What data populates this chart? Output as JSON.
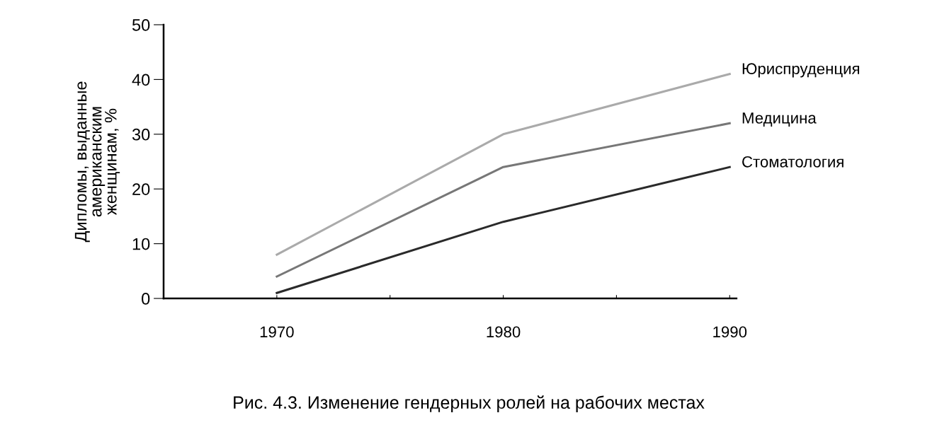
{
  "chart_data": {
    "type": "line",
    "ylabel": "Дипломы, выданные\nамериканским\nженщинам, %",
    "x": [
      1970,
      1980,
      1990
    ],
    "series": [
      {
        "name": "Юриспруденция",
        "color": "#aaaaaa",
        "values": [
          8,
          30,
          41
        ]
      },
      {
        "name": "Медицина",
        "color": "#777777",
        "values": [
          4,
          24,
          32
        ]
      },
      {
        "name": "Стоматология",
        "color": "#2a2a2a",
        "values": [
          1,
          14,
          24
        ]
      }
    ],
    "xlim": [
      1965,
      1990.3
    ],
    "xticks": [
      1970,
      {
        "value": 1975,
        "label": null
      },
      1980,
      {
        "value": 1985,
        "label": null
      },
      1990
    ],
    "ylim": [
      0,
      50
    ],
    "yticks": [
      0,
      10,
      20,
      30,
      40,
      50
    ],
    "grid": false,
    "legend": false,
    "marker": "none",
    "line_style": "solid",
    "annotations": [
      "Рис. 4.3. Изменение гендерных ролей на рабочих местах"
    ]
  }
}
